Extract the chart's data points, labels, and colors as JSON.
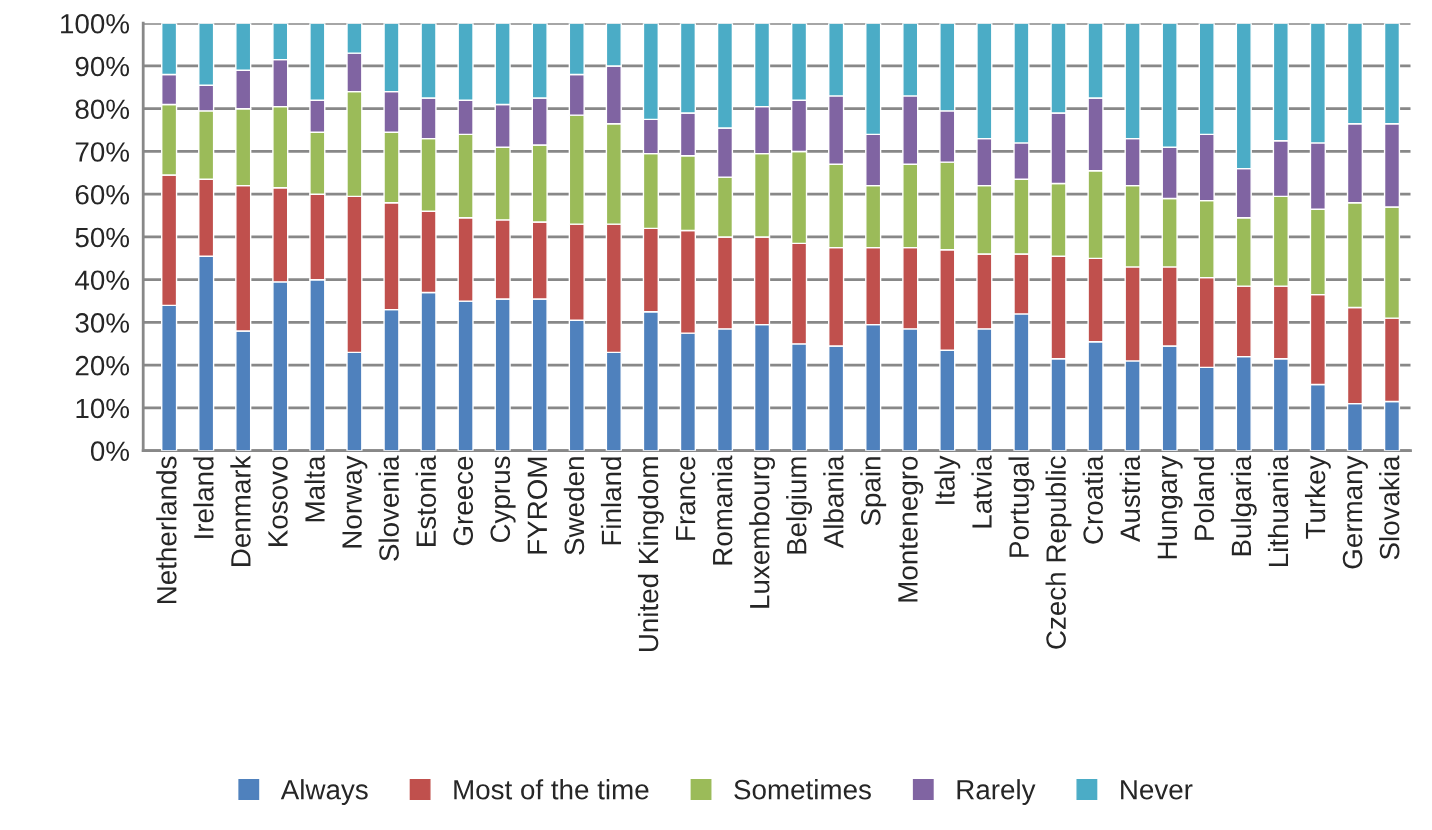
{
  "chart_data": {
    "type": "bar",
    "stacked": true,
    "categories": [
      "Netherlands",
      "Ireland",
      "Denmark",
      "Kosovo",
      "Malta",
      "Norway",
      "Slovenia",
      "Estonia",
      "Greece",
      "Cyprus",
      "FYROM",
      "Sweden",
      "Finland",
      "United Kingdom",
      "France",
      "Romania",
      "Luxembourg",
      "Belgium",
      "Albania",
      "Spain",
      "Montenegro",
      "Italy",
      "Latvia",
      "Portugal",
      "Czech Republic",
      "Croatia",
      "Austria",
      "Hungary",
      "Poland",
      "Bulgaria",
      "Lithuania",
      "Turkey",
      "Germany",
      "Slovakia"
    ],
    "series": [
      {
        "name": "Always",
        "color": "#4f81bd",
        "values": [
          34,
          45.5,
          28,
          39.5,
          40,
          23,
          33,
          37,
          35,
          35.5,
          35.5,
          30.5,
          23,
          32.5,
          27.5,
          28.5,
          29.5,
          25,
          24.5,
          29.5,
          28.5,
          23.5,
          28.5,
          32,
          21.5,
          25.5,
          21,
          24.5,
          19.5,
          22,
          21.5,
          15.5,
          11,
          11.5
        ]
      },
      {
        "name": "Most of the time",
        "color": "#c0504d",
        "values": [
          30.5,
          18,
          34,
          22,
          20,
          36.5,
          25,
          19,
          19.5,
          18.5,
          18,
          22.5,
          30,
          19.5,
          24,
          21.5,
          20.5,
          23.5,
          23,
          18,
          19,
          23.5,
          17.5,
          14,
          24,
          19.5,
          22,
          18.5,
          21,
          16.5,
          17,
          21,
          22.5,
          19.5
        ]
      },
      {
        "name": "Sometimes",
        "color": "#9bbb59",
        "values": [
          16.5,
          16,
          18,
          19,
          14.5,
          24.5,
          16.5,
          17,
          19.5,
          17,
          18,
          25.5,
          23.5,
          17.5,
          17.5,
          14,
          19.5,
          21.5,
          19.5,
          14.5,
          19.5,
          20.5,
          16,
          17.5,
          17,
          20.5,
          19,
          16,
          18,
          16,
          21,
          20,
          24.5,
          26
        ]
      },
      {
        "name": "Rarely",
        "color": "#8064a2",
        "values": [
          7,
          6,
          9,
          11,
          7.5,
          9,
          9.5,
          9.5,
          8,
          10,
          11,
          9.5,
          13.5,
          8,
          10,
          11.5,
          11,
          12,
          16,
          12,
          16,
          12,
          11,
          8.5,
          16.5,
          17,
          11,
          12,
          15.5,
          11.5,
          13,
          15.5,
          18.5,
          19.5
        ]
      },
      {
        "name": "Never",
        "color": "#4bacc6",
        "values": [
          12,
          14.5,
          11,
          8.5,
          18,
          7,
          16,
          17.5,
          18,
          19,
          17.5,
          12,
          10,
          22.5,
          21,
          24.5,
          19.5,
          18,
          17,
          26,
          17,
          20.5,
          27,
          28,
          21,
          17.5,
          27,
          29,
          26,
          34,
          27.5,
          28,
          23.5,
          23.5
        ]
      }
    ],
    "ylim": [
      0,
      100
    ],
    "yticks": [
      {
        "value": 0,
        "label": "0%"
      },
      {
        "value": 10,
        "label": "10%"
      },
      {
        "value": 20,
        "label": "20%"
      },
      {
        "value": 30,
        "label": "30%"
      },
      {
        "value": 40,
        "label": "40%"
      },
      {
        "value": 50,
        "label": "50%"
      },
      {
        "value": 60,
        "label": "60%"
      },
      {
        "value": 70,
        "label": "70%"
      },
      {
        "value": 80,
        "label": "80%"
      },
      {
        "value": 90,
        "label": "90%"
      },
      {
        "value": 100,
        "label": "100%"
      }
    ],
    "grid": "y",
    "legend": "bottom"
  }
}
